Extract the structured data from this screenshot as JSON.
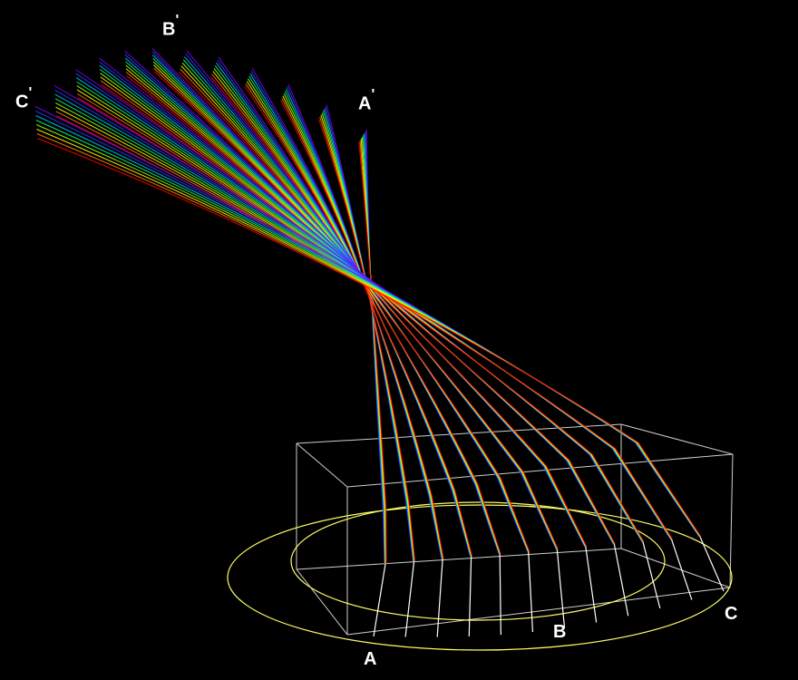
{
  "labels": {
    "a": "A",
    "b": "B",
    "c": "C",
    "a_prime": "A",
    "b_prime": "B",
    "c_prime": "C",
    "prime_mark": "'"
  },
  "colors": {
    "background": "#000000",
    "box": "#cfcfcf",
    "ellipse": "#ffff66",
    "stem": "#ffffff",
    "spectrum": [
      "#8000ff",
      "#2040ff",
      "#00c0ff",
      "#00ff80",
      "#b0ff00",
      "#ffff00",
      "#ff8000",
      "#ff0000"
    ]
  },
  "ray_count": 12
}
